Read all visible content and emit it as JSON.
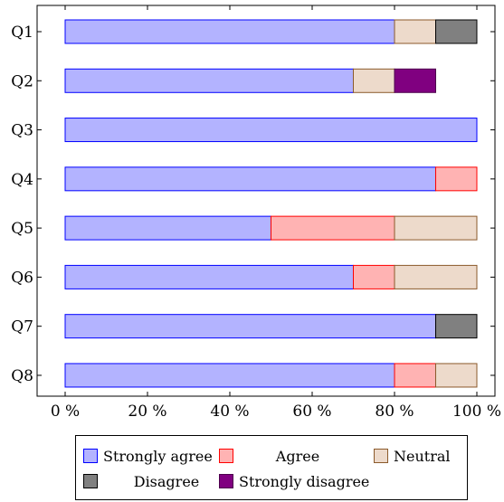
{
  "chart_data": {
    "type": "bar",
    "orientation": "horizontal",
    "stacked": true,
    "categories": [
      "Q1",
      "Q2",
      "Q3",
      "Q4",
      "Q5",
      "Q6",
      "Q7",
      "Q8"
    ],
    "series": [
      {
        "name": "Strongly agree",
        "fill": "#b3b3ff",
        "stroke": "#0000ff",
        "values": [
          80,
          70,
          100,
          90,
          50,
          70,
          90,
          80
        ]
      },
      {
        "name": "Agree",
        "fill": "#ffb3b3",
        "stroke": "#ff0000",
        "values": [
          0,
          0,
          0,
          10,
          30,
          10,
          0,
          10
        ]
      },
      {
        "name": "Neutral",
        "fill": "#eddacb",
        "stroke": "#8b5a2b",
        "values": [
          10,
          10,
          0,
          0,
          20,
          20,
          0,
          10
        ]
      },
      {
        "name": "Disagree",
        "fill": "#808080",
        "stroke": "#000000",
        "values": [
          10,
          0,
          0,
          0,
          0,
          0,
          10,
          0
        ]
      },
      {
        "name": "Strongly disagree",
        "fill": "#800080",
        "stroke": "#4d004d",
        "values": [
          0,
          10,
          0,
          0,
          0,
          0,
          0,
          0
        ]
      }
    ],
    "xlim": [
      0,
      100
    ],
    "xticks": [
      0,
      20,
      40,
      60,
      80,
      100
    ],
    "xtick_labels": [
      "0 %",
      "20 %",
      "40 %",
      "60 %",
      "80 %",
      "100 %"
    ],
    "title": "",
    "xlabel": "",
    "ylabel": "",
    "grid": false,
    "legend_position": "bottom"
  }
}
